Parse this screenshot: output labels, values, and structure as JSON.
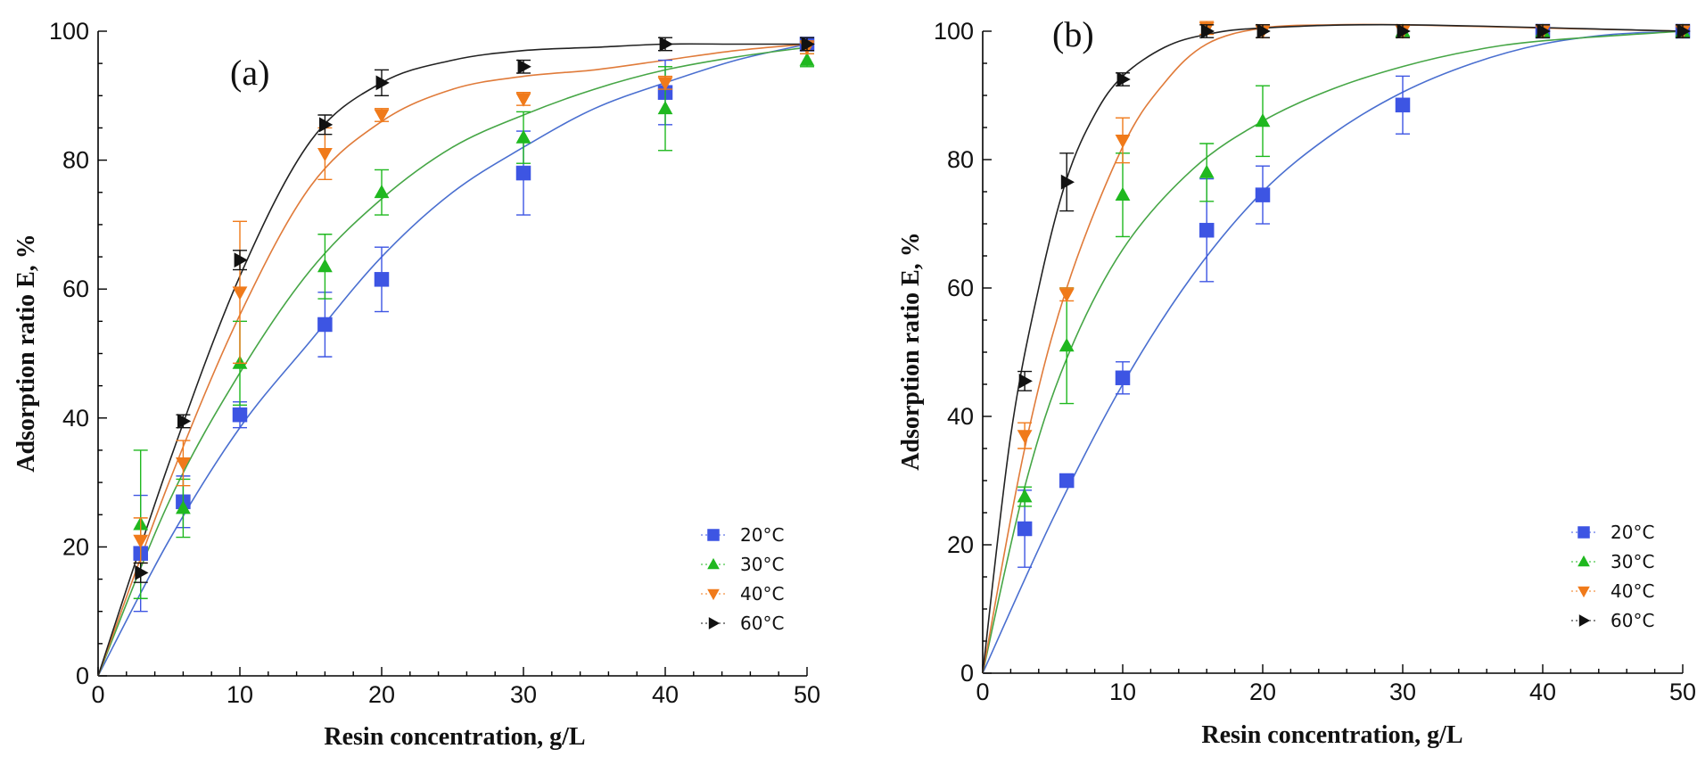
{
  "colors": {
    "20°C": "#3d55e3",
    "30°C": "#1fb81f",
    "40°C": "#f07a1a",
    "60°C": "#111111",
    "fit_20°C": "#4a6fd0",
    "fit_30°C": "#46a646",
    "fit_40°C": "#e07b3a",
    "fit_60°C": "#222222"
  },
  "chart_data": [
    {
      "type": "scatter",
      "panel": "(a)",
      "xlabel": "Resin concentration, g/L",
      "ylabel": "Adsorption ratio E, %",
      "xlim": [
        0,
        50
      ],
      "ylim": [
        0,
        100
      ],
      "xticks": [
        0,
        10,
        20,
        30,
        40,
        50
      ],
      "yticks": [
        0,
        20,
        40,
        60,
        80,
        100
      ],
      "legend_position": "bottom-right",
      "series": [
        {
          "name": "20°C",
          "marker": "square",
          "x": [
            3,
            6,
            10,
            16,
            20,
            30,
            40,
            50
          ],
          "y": [
            19,
            27,
            40.5,
            54.5,
            61.5,
            78,
            90.5,
            98
          ],
          "err": [
            9,
            4,
            2,
            5,
            5,
            6.5,
            5,
            1
          ],
          "fit_x": [
            0,
            5,
            10,
            15,
            20,
            25,
            30,
            35,
            40,
            45,
            50
          ],
          "fit_y": [
            0,
            21,
            38.5,
            52,
            65,
            75,
            82,
            88,
            92,
            95.5,
            98
          ]
        },
        {
          "name": "30°C",
          "marker": "triangle-up",
          "x": [
            3,
            6,
            10,
            16,
            20,
            30,
            40,
            50
          ],
          "y": [
            23.5,
            26,
            48.5,
            63.5,
            75,
            83.5,
            88,
            95.5
          ],
          "err": [
            11.5,
            4.5,
            6.5,
            5,
            3.5,
            4,
            6.5,
            1
          ],
          "fit_x": [
            0,
            5,
            10,
            15,
            20,
            25,
            30,
            35,
            40,
            45,
            50
          ],
          "fit_y": [
            0,
            27,
            47,
            63,
            74,
            82,
            87,
            91,
            94,
            96,
            97.5
          ]
        },
        {
          "name": "40°C",
          "marker": "triangle-down",
          "x": [
            3,
            6,
            10,
            16,
            20,
            30,
            40,
            50
          ],
          "y": [
            21,
            33,
            59.5,
            81,
            87,
            89.5,
            92,
            97.5
          ],
          "err": [
            3.5,
            3.5,
            11,
            4,
            1,
            1,
            1,
            1
          ],
          "fit_x": [
            0,
            5,
            10,
            15,
            20,
            25,
            30,
            35,
            40,
            45,
            50
          ],
          "fit_y": [
            0,
            30,
            56,
            76,
            86,
            91,
            93,
            94,
            95.5,
            97,
            98
          ]
        },
        {
          "name": "60°C",
          "marker": "triangle-right",
          "x": [
            3,
            6,
            10,
            16,
            20,
            30,
            40,
            50
          ],
          "y": [
            16,
            39.5,
            64.5,
            85.5,
            92,
            94.5,
            98,
            98
          ],
          "err": [
            1.5,
            1,
            1.5,
            1.5,
            2,
            1,
            1,
            1
          ],
          "fit_x": [
            0,
            5,
            10,
            15,
            20,
            25,
            30,
            35,
            40,
            45,
            50
          ],
          "fit_y": [
            0,
            33,
            62,
            83,
            92,
            95.5,
            97,
            97.5,
            98,
            98,
            98
          ]
        }
      ]
    },
    {
      "type": "scatter",
      "panel": "(b)",
      "xlabel": "Resin concentration, g/L",
      "ylabel": "Adsorption ratio E, %",
      "xlim": [
        0,
        50
      ],
      "ylim": [
        0,
        100
      ],
      "xticks": [
        0,
        10,
        20,
        30,
        40,
        50
      ],
      "yticks": [
        0,
        20,
        40,
        60,
        80,
        100
      ],
      "legend_position": "bottom-right",
      "series": [
        {
          "name": "20°C",
          "marker": "square",
          "x": [
            3,
            6,
            10,
            16,
            20,
            30,
            40,
            50
          ],
          "y": [
            22.5,
            30,
            46,
            69,
            74.5,
            88.5,
            100,
            100
          ],
          "err": [
            6,
            1,
            2.5,
            8,
            4.5,
            4.5,
            1,
            1
          ],
          "fit_x": [
            0,
            5,
            10,
            15,
            20,
            25,
            30,
            35,
            40,
            45,
            50
          ],
          "fit_y": [
            0,
            24,
            45,
            62,
            75,
            84,
            90.5,
            95,
            98,
            99.5,
            100
          ]
        },
        {
          "name": "30°C",
          "marker": "triangle-up",
          "x": [
            3,
            6,
            10,
            16,
            20,
            30,
            40,
            50
          ],
          "y": [
            27.5,
            51,
            74.5,
            78,
            86,
            100,
            100,
            100
          ],
          "err": [
            1.5,
            9,
            6.5,
            4.5,
            5.5,
            1,
            1,
            1
          ],
          "fit_x": [
            0,
            3,
            6,
            10,
            15,
            20,
            25,
            30,
            35,
            40,
            50
          ],
          "fit_y": [
            0,
            29,
            49,
            66,
            78.5,
            86,
            91,
            94.5,
            97,
            98.5,
            100
          ]
        },
        {
          "name": "40°C",
          "marker": "triangle-down",
          "x": [
            3,
            6,
            10,
            16,
            20,
            30,
            40,
            50
          ],
          "y": [
            37,
            59,
            83,
            100.5,
            100,
            100,
            100,
            100
          ],
          "err": [
            2,
            1,
            3.5,
            1,
            1,
            1,
            1,
            1
          ],
          "fit_x": [
            0,
            3,
            6,
            10,
            13,
            16,
            20,
            25,
            30,
            40,
            50
          ],
          "fit_y": [
            0,
            35,
            60,
            82,
            92,
            98,
            100.5,
            101,
            101,
            100.5,
            100
          ]
        },
        {
          "name": "60°C",
          "marker": "triangle-right",
          "x": [
            3,
            6,
            10,
            16,
            20,
            30,
            40,
            50
          ],
          "y": [
            45.5,
            76.5,
            92.5,
            100,
            100,
            100,
            100,
            100
          ],
          "err": [
            1.5,
            4.5,
            1,
            1,
            1,
            1,
            1,
            1
          ],
          "fit_x": [
            0,
            2,
            4,
            6,
            8,
            10,
            13,
            16,
            20,
            30,
            50
          ],
          "fit_y": [
            0,
            37,
            60,
            77,
            87,
            93,
            97.5,
            99.5,
            100.5,
            101,
            100
          ]
        }
      ]
    }
  ]
}
